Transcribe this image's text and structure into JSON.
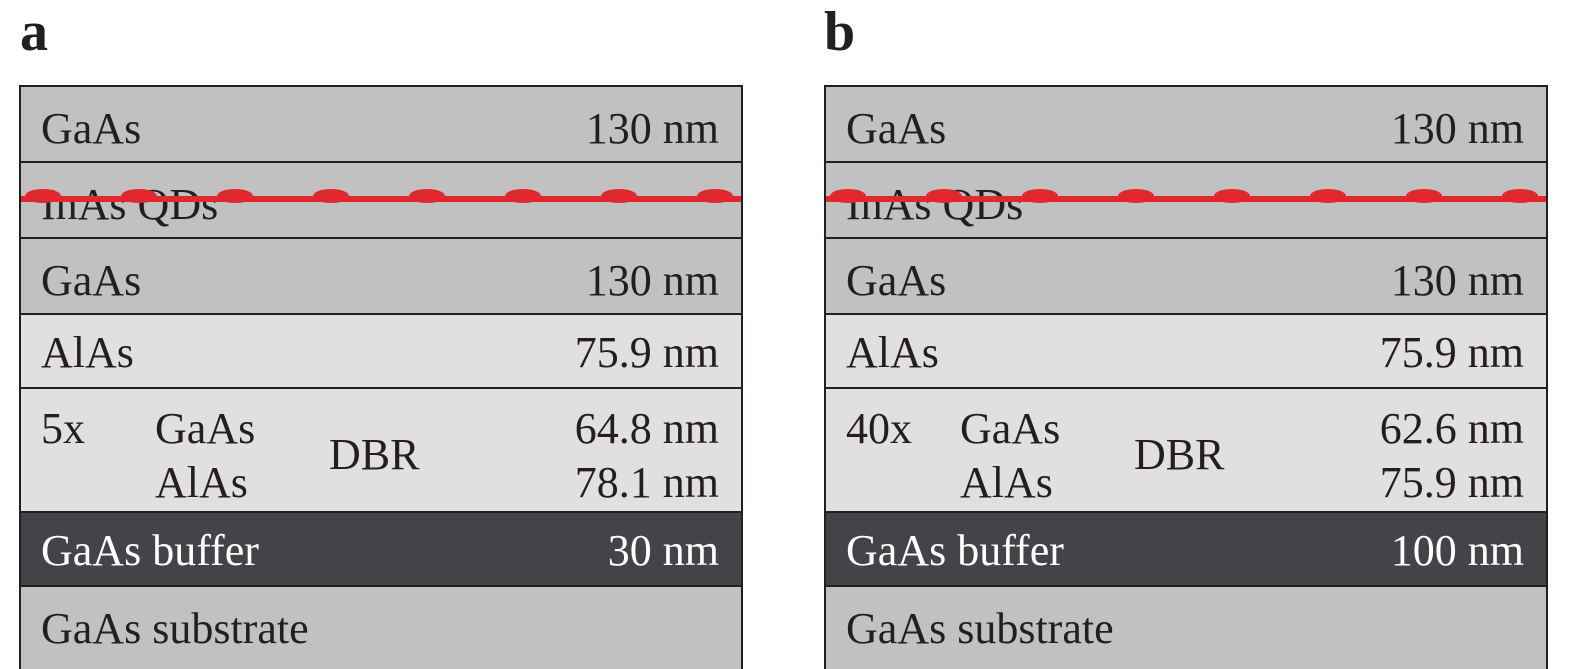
{
  "panels": [
    {
      "label": "a",
      "top_layer": {
        "material": "GaAs",
        "thickness": "130 nm"
      },
      "qd_layer": {
        "material": "InAs QDs"
      },
      "spacer_layer": {
        "material": "GaAs",
        "thickness": "130 nm"
      },
      "alas_layer": {
        "material": "AlAs",
        "thickness": "75.9 nm"
      },
      "dbr": {
        "repeats": "5x",
        "material_1": "GaAs",
        "material_2": "AlAs",
        "label": "DBR",
        "thickness_1": "64.8 nm",
        "thickness_2": "78.1 nm"
      },
      "buffer": {
        "material": "GaAs buffer",
        "thickness": "30 nm"
      },
      "substrate": {
        "material": "GaAs substrate"
      }
    },
    {
      "label": "b",
      "top_layer": {
        "material": "GaAs",
        "thickness": "130 nm"
      },
      "qd_layer": {
        "material": "InAs QDs"
      },
      "spacer_layer": {
        "material": "GaAs",
        "thickness": "130 nm"
      },
      "alas_layer": {
        "material": "AlAs",
        "thickness": "75.9 nm"
      },
      "dbr": {
        "repeats": "40x",
        "material_1": "GaAs",
        "material_2": "AlAs",
        "label": "DBR",
        "thickness_1": "62.6 nm",
        "thickness_2": "75.9 nm"
      },
      "buffer": {
        "material": "GaAs buffer",
        "thickness": "100 nm"
      },
      "substrate": {
        "material": "GaAs substrate"
      }
    }
  ],
  "colors": {
    "gaas": "#c1c1c1",
    "alas_dbr": "#e1e0df",
    "buffer": "#434448",
    "quantum_dots": "#e0282e",
    "outline": "#231f20"
  }
}
